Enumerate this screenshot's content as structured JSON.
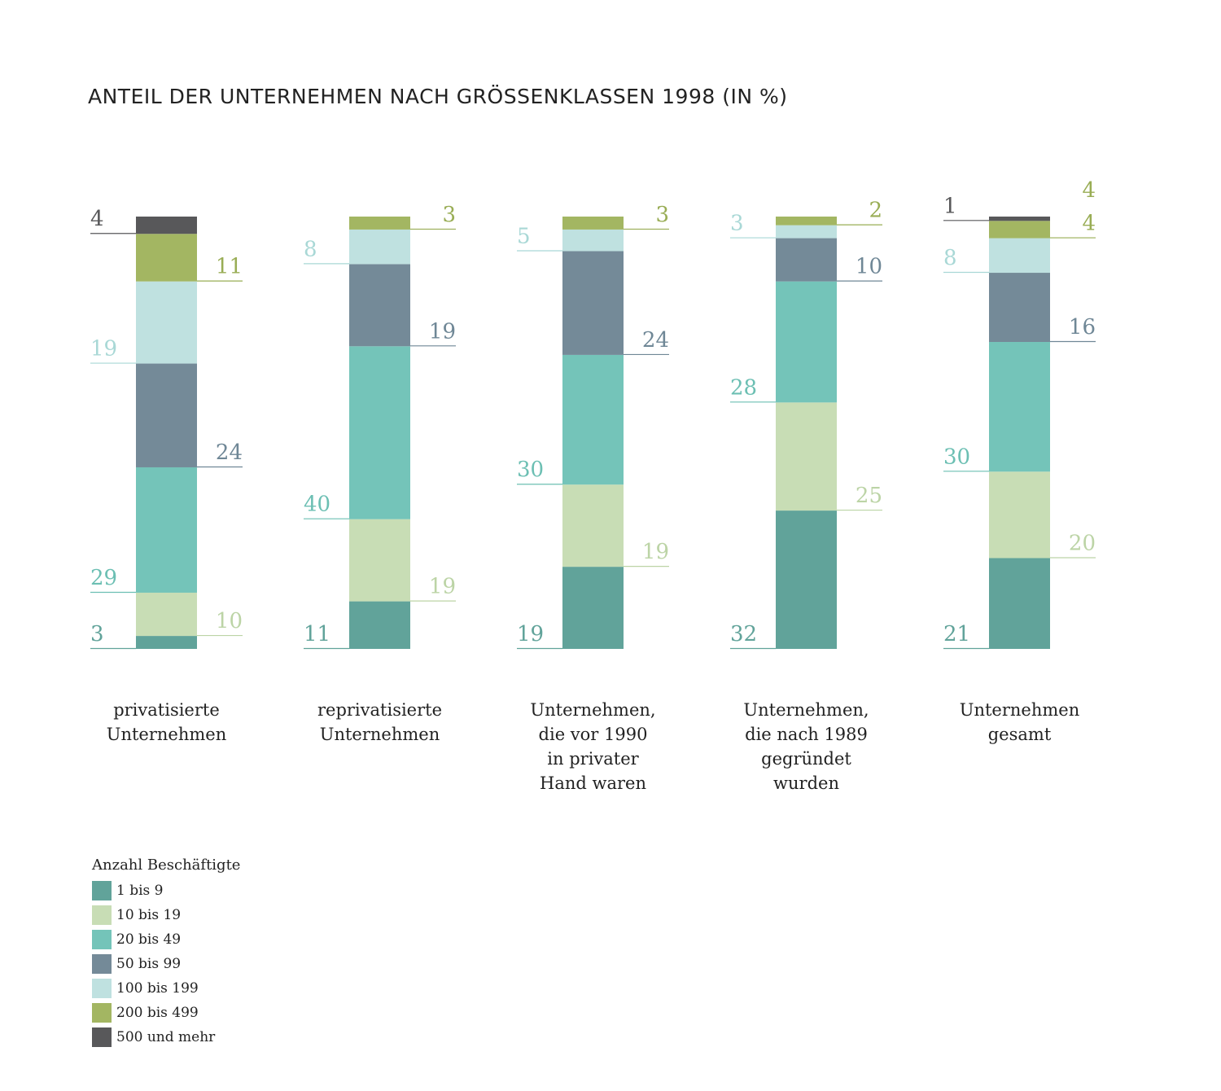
{
  "chart_data": {
    "type": "bar",
    "stacked": true,
    "title": "ANTEIL DER UNTERNEHMEN NACH GRÖSSENKLASSEN 1998 (IN %)",
    "xlabel": "",
    "ylabel": "",
    "ylim": [
      0,
      100
    ],
    "grid": false,
    "legend_placement": "bottom-left",
    "legend_title": "Anzahl Beschäftigte",
    "categories": [
      [
        "privatisierte",
        "Unternehmen"
      ],
      [
        "reprivatisierte",
        "Unternehmen"
      ],
      [
        "Unternehmen,",
        "die vor 1990",
        "in privater",
        "Hand waren"
      ],
      [
        "Unternehmen,",
        "die nach 1989",
        "gegründet",
        "wurden"
      ],
      [
        "Unternehmen",
        "gesamt"
      ]
    ],
    "series": [
      {
        "name": "1 bis 9",
        "color": "#61a39a",
        "label_color": "#61a39a",
        "values": [
          3,
          11,
          19,
          32,
          21
        ]
      },
      {
        "name": "10 bis 19",
        "color": "#c8ddb5",
        "label_color": "#bcd4a6",
        "values": [
          10,
          19,
          19,
          25,
          20
        ]
      },
      {
        "name": "20 bis 49",
        "color": "#74c4b9",
        "label_color": "#6cbfb3",
        "values": [
          29,
          40,
          30,
          28,
          30
        ]
      },
      {
        "name": "50 bis 99",
        "color": "#748a98",
        "label_color": "#6f8796",
        "values": [
          24,
          19,
          24,
          10,
          16
        ]
      },
      {
        "name": "100 bis 199",
        "color": "#bfe1e0",
        "label_color": "#a9d8d6",
        "values": [
          19,
          8,
          5,
          3,
          8
        ]
      },
      {
        "name": "200 bis 499",
        "color": "#a3b662",
        "label_color": "#99ad55",
        "values": [
          11,
          3,
          3,
          2,
          4
        ]
      },
      {
        "name": "500 und mehr",
        "color": "#58585a",
        "label_color": "#58585a",
        "values": [
          4,
          0,
          0,
          0,
          1
        ]
      }
    ],
    "annotations": [
      {
        "category_index": 4,
        "text": "4",
        "color": "#99ad55"
      }
    ]
  }
}
